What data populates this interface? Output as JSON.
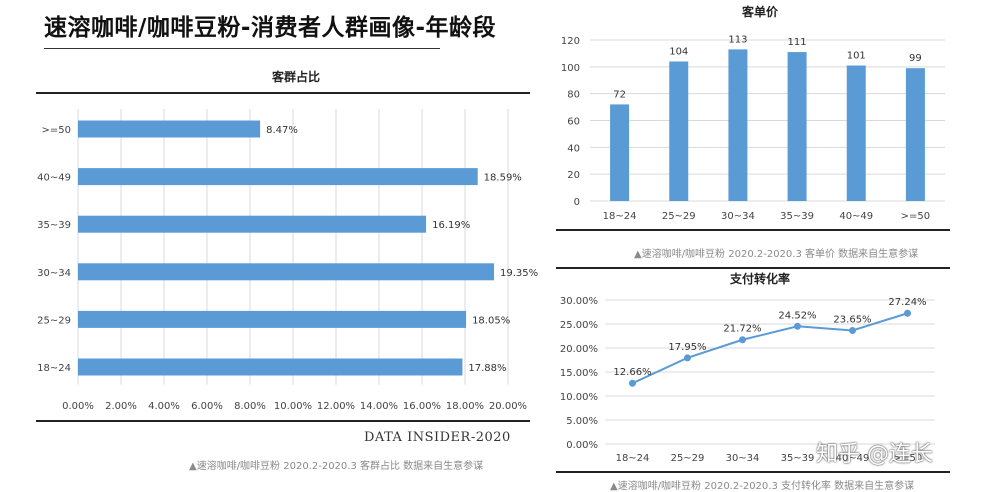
{
  "page": {
    "title": "速溶咖啡/咖啡豆粉-消费者人群画像-年龄段"
  },
  "brand": "DATA INSIDER-2020",
  "watermark": "知乎 @连长",
  "colors": {
    "bar": "#5b9bd5",
    "line": "#5b9bd5",
    "grid": "#d9d9d9",
    "axis": "#bfbfbf"
  },
  "chart_data": [
    {
      "id": "share",
      "type": "bar",
      "orientation": "horizontal",
      "title": "客群占比",
      "categories": [
        ">=50",
        "40~49",
        "35~39",
        "30~34",
        "25~29",
        "18~24"
      ],
      "values": [
        8.47,
        18.59,
        16.19,
        19.35,
        18.05,
        17.88
      ],
      "data_labels": [
        "8.47%",
        "18.59%",
        "16.19%",
        "19.35%",
        "18.05%",
        "17.88%"
      ],
      "xlim": [
        0,
        20
      ],
      "x_ticks": [
        "0.00%",
        "2.00%",
        "4.00%",
        "6.00%",
        "8.00%",
        "10.00%",
        "12.00%",
        "14.00%",
        "16.00%",
        "18.00%",
        "20.00%"
      ],
      "grid": "vertical",
      "source": "▲速溶咖啡/咖啡豆粉  2020.2-2020.3  客群占比 数据来自生意参谋"
    },
    {
      "id": "price",
      "type": "bar",
      "orientation": "vertical",
      "title": "客单价",
      "categories": [
        "18~24",
        "25~29",
        "30~34",
        "35~39",
        "40~49",
        ">=50"
      ],
      "values": [
        72,
        104,
        113,
        111,
        101,
        99
      ],
      "data_labels": [
        "72",
        "104",
        "113",
        "111",
        "101",
        "99"
      ],
      "ylim": [
        0,
        120
      ],
      "y_ticks": [
        "0",
        "20",
        "40",
        "60",
        "80",
        "100",
        "120"
      ],
      "grid": "horizontal",
      "source": "▲速溶咖啡/咖啡豆粉  2020.2-2020.3  客单价  数据来自生意参谋"
    },
    {
      "id": "conversion",
      "type": "line",
      "title": "支付转化率",
      "categories": [
        "18~24",
        "25~29",
        "30~34",
        "35~39",
        "40~49",
        ">=50"
      ],
      "values": [
        12.66,
        17.95,
        21.72,
        24.52,
        23.65,
        27.24
      ],
      "data_labels": [
        "12.66%",
        "17.95%",
        "21.72%",
        "24.52%",
        "23.65%",
        "27.24%"
      ],
      "ylim": [
        0,
        30
      ],
      "y_ticks": [
        "0.00%",
        "5.00%",
        "10.00%",
        "15.00%",
        "20.00%",
        "25.00%",
        "30.00%"
      ],
      "grid": "horizontal",
      "source": "▲速溶咖啡/咖啡豆粉  2020.2-2020.3  支付转化率  数据来自生意参谋"
    }
  ]
}
